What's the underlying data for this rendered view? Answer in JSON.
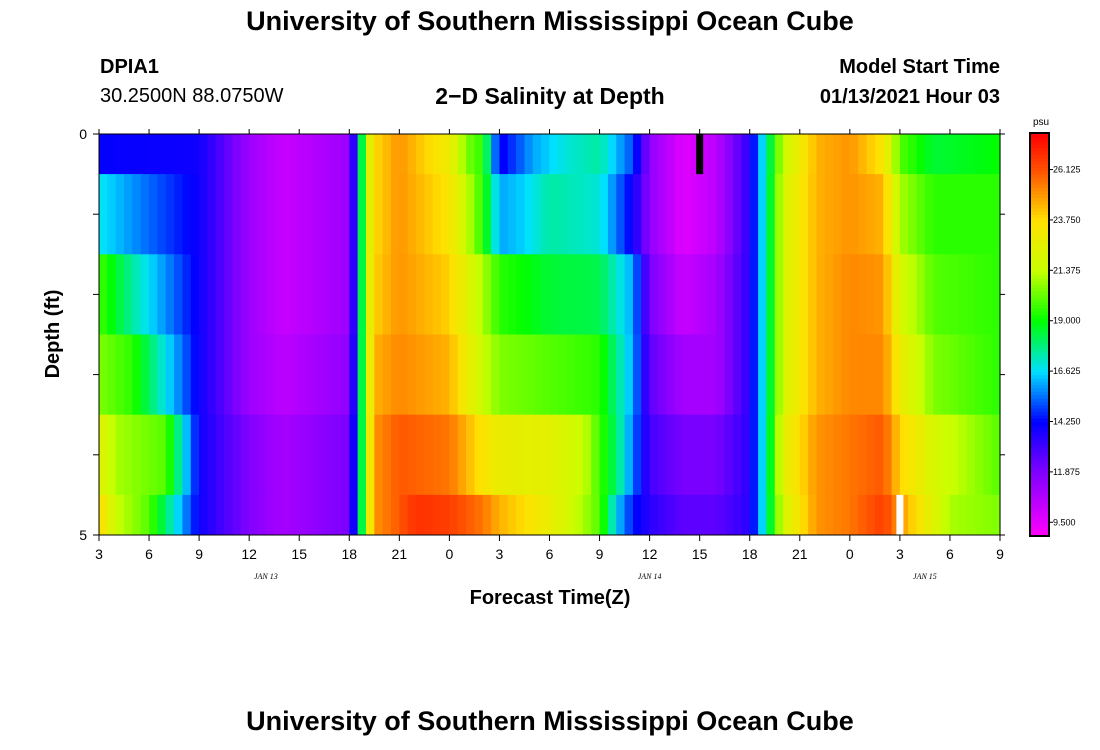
{
  "header": {
    "title": "University of Southern Mississippi Ocean Cube",
    "station_id": "DPIA1",
    "station_coords": "30.2500N 88.0750W",
    "chart_title": "2−D Salinity at Depth",
    "model_start_label": "Model Start Time",
    "model_start_value": "01/13/2021 Hour 03"
  },
  "footer": {
    "title": "University of Southern Mississippi Ocean Cube"
  },
  "chart_data": {
    "type": "heatmap",
    "title": "2−D Salinity at Depth",
    "xlabel": "Forecast Time(Z)",
    "ylabel": "Depth (ft)",
    "x_hours_start": 3,
    "x_hours_end": 57,
    "ylim": [
      0,
      5
    ],
    "y_tick_labels": [
      "0",
      "5"
    ],
    "x_ticks": [
      {
        "hour": 3,
        "label": "3"
      },
      {
        "hour": 6,
        "label": "6"
      },
      {
        "hour": 9,
        "label": "9"
      },
      {
        "hour": 12,
        "label": "12"
      },
      {
        "hour": 15,
        "label": "15"
      },
      {
        "hour": 18,
        "label": "18"
      },
      {
        "hour": 21,
        "label": "21"
      },
      {
        "hour": 24,
        "label": "0"
      },
      {
        "hour": 27,
        "label": "3"
      },
      {
        "hour": 30,
        "label": "6"
      },
      {
        "hour": 33,
        "label": "9"
      },
      {
        "hour": 36,
        "label": "12"
      },
      {
        "hour": 39,
        "label": "15"
      },
      {
        "hour": 42,
        "label": "18"
      },
      {
        "hour": 45,
        "label": "21"
      },
      {
        "hour": 48,
        "label": "0"
      },
      {
        "hour": 51,
        "label": "3"
      },
      {
        "hour": 54,
        "label": "6"
      },
      {
        "hour": 57,
        "label": "9"
      }
    ],
    "day_labels": [
      {
        "hour": 13,
        "label": "JAN 13"
      },
      {
        "hour": 36,
        "label": "JAN 14"
      },
      {
        "hour": 52.5,
        "label": "JAN 15"
      }
    ],
    "depth_layers": [
      {
        "top": 0.0,
        "bottom": 0.5
      },
      {
        "top": 0.5,
        "bottom": 1.5
      },
      {
        "top": 1.5,
        "bottom": 2.5
      },
      {
        "top": 2.5,
        "bottom": 3.5
      },
      {
        "top": 3.5,
        "bottom": 4.5
      },
      {
        "top": 4.5,
        "bottom": 5.0
      }
    ],
    "salinity": [
      [
        [
          3,
          14.2
        ],
        [
          9,
          14.0
        ],
        [
          12,
          11.2
        ],
        [
          14,
          10.2
        ],
        [
          18,
          11.2
        ],
        [
          18.6,
          16.5
        ],
        [
          19,
          21.5
        ],
        [
          19.5,
          23.8
        ],
        [
          21,
          25.0
        ],
        [
          24,
          23.0
        ],
        [
          25,
          20.5
        ],
        [
          26,
          19.5
        ],
        [
          27,
          14.0
        ],
        [
          29,
          16.0
        ],
        [
          31,
          17.0
        ],
        [
          33,
          17.5
        ],
        [
          35,
          15.0
        ],
        [
          36,
          11.5
        ],
        [
          38,
          9.6
        ],
        [
          40,
          10.5
        ],
        [
          42,
          13.5
        ],
        [
          43,
          17.5
        ],
        [
          44,
          21.5
        ],
        [
          46,
          24.5
        ],
        [
          48,
          25.0
        ],
        [
          50,
          23.5
        ],
        [
          51,
          20.0
        ],
        [
          53,
          18.5
        ],
        [
          57,
          19.0
        ]
      ],
      [
        [
          3,
          16.8
        ],
        [
          5,
          15.8
        ],
        [
          9,
          14.0
        ],
        [
          12,
          11.2
        ],
        [
          14,
          10.2
        ],
        [
          18,
          11.2
        ],
        [
          18.6,
          16.5
        ],
        [
          19,
          21.5
        ],
        [
          19.5,
          23.8
        ],
        [
          21,
          25.0
        ],
        [
          24,
          23.5
        ],
        [
          26,
          19.5
        ],
        [
          27,
          16.0
        ],
        [
          28.5,
          16.5
        ],
        [
          30,
          17.5
        ],
        [
          33,
          17.0
        ],
        [
          35,
          14.0
        ],
        [
          36,
          11.5
        ],
        [
          38,
          9.6
        ],
        [
          40,
          10.5
        ],
        [
          42,
          13.5
        ],
        [
          43,
          17.5
        ],
        [
          44,
          22.0
        ],
        [
          46,
          24.5
        ],
        [
          48,
          25.0
        ],
        [
          50,
          24.5
        ],
        [
          51,
          21.0
        ],
        [
          53,
          19.5
        ],
        [
          57,
          19.5
        ]
      ],
      [
        [
          3,
          19.8
        ],
        [
          5,
          17.5
        ],
        [
          9,
          14.0
        ],
        [
          12,
          11.2
        ],
        [
          14,
          10.2
        ],
        [
          18,
          11.2
        ],
        [
          18.6,
          16.5
        ],
        [
          19,
          21.5
        ],
        [
          19.5,
          24.0
        ],
        [
          21,
          25.0
        ],
        [
          24,
          24.0
        ],
        [
          26,
          21.0
        ],
        [
          27,
          19.5
        ],
        [
          30,
          18.5
        ],
        [
          33,
          18.3
        ],
        [
          35,
          16.0
        ],
        [
          36,
          12.0
        ],
        [
          38,
          10.2
        ],
        [
          40,
          11.0
        ],
        [
          42,
          13.5
        ],
        [
          43,
          17.5
        ],
        [
          44,
          22.0
        ],
        [
          46,
          24.5
        ],
        [
          48,
          25.2
        ],
        [
          50,
          25.0
        ],
        [
          51,
          22.0
        ],
        [
          53,
          20.0
        ],
        [
          57,
          19.5
        ]
      ],
      [
        [
          3,
          20.5
        ],
        [
          5,
          19.5
        ],
        [
          9,
          14.0
        ],
        [
          12,
          11.2
        ],
        [
          14,
          10.5
        ],
        [
          18,
          11.5
        ],
        [
          18.6,
          16.5
        ],
        [
          19,
          21.5
        ],
        [
          19.5,
          24.5
        ],
        [
          21,
          25.2
        ],
        [
          24,
          24.5
        ],
        [
          26,
          21.5
        ],
        [
          27,
          20.5
        ],
        [
          30,
          20.0
        ],
        [
          33,
          19.5
        ],
        [
          35,
          16.0
        ],
        [
          36,
          12.5
        ],
        [
          38,
          11.0
        ],
        [
          40,
          11.0
        ],
        [
          42,
          13.5
        ],
        [
          43,
          17.5
        ],
        [
          44,
          22.0
        ],
        [
          46,
          24.5
        ],
        [
          48,
          25.2
        ],
        [
          50,
          25.2
        ],
        [
          51,
          23.0
        ],
        [
          53,
          20.5
        ],
        [
          57,
          19.5
        ]
      ],
      [
        [
          3,
          22.5
        ],
        [
          4,
          21.0
        ],
        [
          7,
          20.0
        ],
        [
          9,
          14.0
        ],
        [
          12,
          11.8
        ],
        [
          14,
          11.0
        ],
        [
          18,
          12.0
        ],
        [
          18.6,
          16.5
        ],
        [
          19,
          21.5
        ],
        [
          19.5,
          25.0
        ],
        [
          21,
          26.0
        ],
        [
          24,
          25.5
        ],
        [
          26,
          23.5
        ],
        [
          27,
          22.8
        ],
        [
          30,
          22.5
        ],
        [
          32,
          21.5
        ],
        [
          34,
          18.0
        ],
        [
          35,
          15.5
        ],
        [
          36,
          13.0
        ],
        [
          38,
          12.0
        ],
        [
          40,
          12.0
        ],
        [
          42,
          13.5
        ],
        [
          43,
          17.5
        ],
        [
          44,
          22.5
        ],
        [
          46,
          25.0
        ],
        [
          48,
          25.5
        ],
        [
          50,
          26.0
        ],
        [
          51,
          24.0
        ],
        [
          53,
          22.0
        ],
        [
          57,
          20.0
        ]
      ],
      [
        [
          3,
          24.0
        ],
        [
          4,
          21.5
        ],
        [
          6,
          20.0
        ],
        [
          7,
          18.0
        ],
        [
          9,
          14.0
        ],
        [
          12,
          11.8
        ],
        [
          14,
          11.0
        ],
        [
          18,
          12.0
        ],
        [
          18.6,
          16.5
        ],
        [
          19,
          21.5
        ],
        [
          19.5,
          25.0
        ],
        [
          21,
          26.0
        ],
        [
          22,
          26.8
        ],
        [
          24,
          26.5
        ],
        [
          26,
          25.5
        ],
        [
          27,
          24.5
        ],
        [
          29,
          23.5
        ],
        [
          31,
          22.0
        ],
        [
          33,
          20.0
        ],
        [
          34,
          16.5
        ],
        [
          35,
          14.5
        ],
        [
          36,
          13.5
        ],
        [
          38,
          12.5
        ],
        [
          40,
          12.5
        ],
        [
          42,
          13.5
        ],
        [
          43,
          17.5
        ],
        [
          44,
          22.0
        ],
        [
          46,
          25.0
        ],
        [
          48,
          25.5
        ],
        [
          50,
          26.5
        ],
        [
          51,
          25.0
        ],
        [
          52.5,
          23.0
        ],
        [
          54,
          21.0
        ],
        [
          57,
          20.5
        ]
      ]
    ],
    "missing_marks": [
      {
        "hour": 39,
        "depth_top": 0.0,
        "depth_bottom": 0.5,
        "fill": "#000000"
      },
      {
        "hour": 51,
        "depth_top": 4.5,
        "depth_bottom": 5.0,
        "fill": "#ffffff"
      }
    ],
    "colorbar": {
      "unit": "psu",
      "min": 8.9,
      "max": 27.8,
      "tick_values": [
        9.5,
        11.875,
        14.25,
        16.625,
        19.0,
        21.375,
        23.75,
        26.125
      ],
      "tick_labels": [
        "9.500",
        "11.875",
        "14.250",
        "16.625",
        "19.000",
        "21.375",
        "23.750",
        "26.125"
      ],
      "stops": [
        {
          "value": 8.9,
          "color": "#ff00ff"
        },
        {
          "value": 11.875,
          "color": "#8000ff"
        },
        {
          "value": 14.25,
          "color": "#0000ff"
        },
        {
          "value": 16.625,
          "color": "#00e0ff"
        },
        {
          "value": 19.0,
          "color": "#00ff00"
        },
        {
          "value": 21.375,
          "color": "#c8ff00"
        },
        {
          "value": 23.75,
          "color": "#ffe000"
        },
        {
          "value": 26.125,
          "color": "#ff5000"
        },
        {
          "value": 27.8,
          "color": "#ff0000"
        }
      ]
    }
  }
}
